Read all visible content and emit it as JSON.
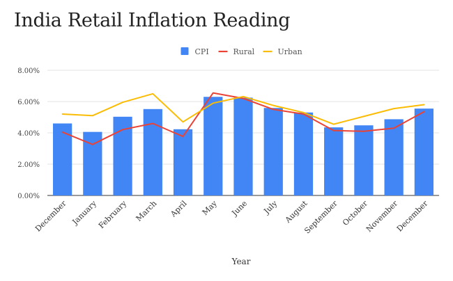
{
  "chart_data": {
    "type": "bar",
    "title": "India Retail Inflation Reading",
    "xlabel": "Year",
    "ylabel": "",
    "ylim": [
      0,
      8
    ],
    "y_ticks": [
      "0.00%",
      "2.00%",
      "4.00%",
      "6.00%",
      "8.00%"
    ],
    "grid": true,
    "legend_position": "top",
    "categories": [
      "December",
      "January",
      "February",
      "March",
      "April",
      "May",
      "June",
      "July",
      "August",
      "September",
      "October",
      "November",
      "December"
    ],
    "series": [
      {
        "name": "CPI",
        "type": "bar",
        "color": "#4285f4",
        "values": [
          4.6,
          4.06,
          5.03,
          5.52,
          4.23,
          6.3,
          6.25,
          5.59,
          5.3,
          4.35,
          4.48,
          4.87,
          5.55
        ]
      },
      {
        "name": "Rural",
        "type": "line",
        "color": "#ea4335",
        "values": [
          4.05,
          3.26,
          4.21,
          4.6,
          3.77,
          6.55,
          6.2,
          5.5,
          5.2,
          4.15,
          4.1,
          4.3,
          5.35
        ]
      },
      {
        "name": "Urban",
        "type": "line",
        "color": "#fbbc04",
        "values": [
          5.2,
          5.1,
          5.95,
          6.5,
          4.7,
          5.9,
          6.32,
          5.75,
          5.3,
          4.55,
          5.05,
          5.55,
          5.8
        ]
      }
    ]
  }
}
